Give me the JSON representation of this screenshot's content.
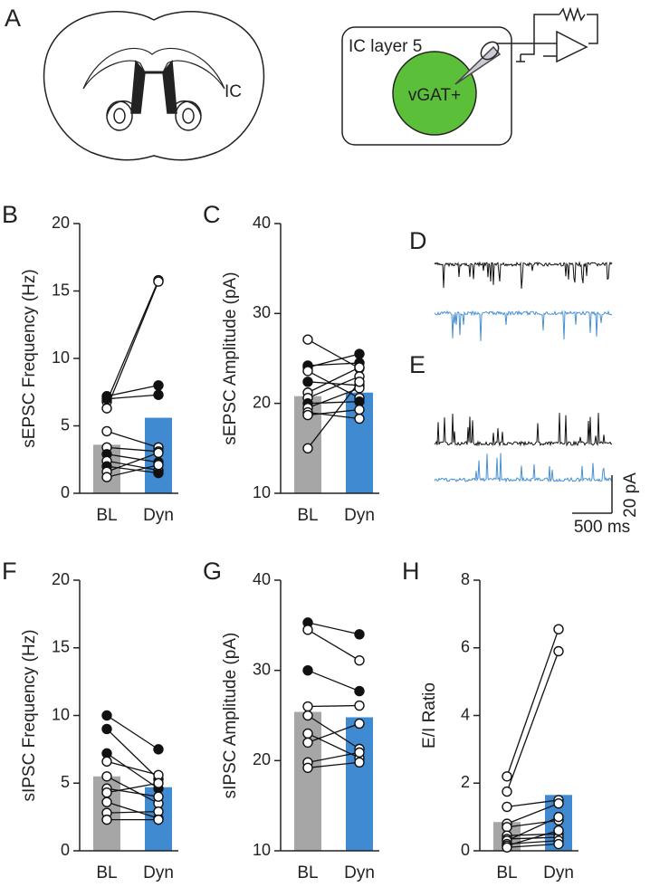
{
  "diagram": {
    "panel": "A",
    "region": "IC",
    "layer": "IC layer 5",
    "cell": "vGAT+"
  },
  "traces": {
    "panels": [
      "D",
      "E"
    ],
    "colors": [
      "#111111",
      "#4a90d0"
    ],
    "scale_y": "20 pA",
    "scale_x": "500 ms"
  },
  "chart_data": [
    {
      "type": "paired-bar",
      "panel": "B",
      "ylabel": "sEPSC Frequency (Hz)",
      "categories": [
        "BL",
        "Dyn"
      ],
      "values": [
        3.6,
        5.6
      ],
      "colors": [
        "#a6a6a6",
        "#3f8ad1"
      ],
      "ylim": [
        0,
        20
      ],
      "yticks": [
        0,
        5,
        10,
        15,
        20
      ],
      "before": [
        6.8,
        6.3,
        7.2,
        7.0,
        4.6,
        3.4,
        2.9,
        2.4,
        2.0,
        1.6,
        1.2
      ],
      "after": [
        15.8,
        15.7,
        8.0,
        7.3,
        3.4,
        3.1,
        2.3,
        1.7,
        1.5,
        3.0,
        2.1
      ],
      "filled": [
        false,
        false,
        true,
        true,
        false,
        false,
        true,
        false,
        true,
        false,
        false
      ]
    },
    {
      "type": "paired-bar",
      "panel": "C",
      "ylabel": "sEPSC Amplitude (pA)",
      "categories": [
        "BL",
        "Dyn"
      ],
      "values": [
        20.8,
        21.2
      ],
      "colors": [
        "#a6a6a6",
        "#3f8ad1"
      ],
      "ylim": [
        10,
        40
      ],
      "yticks": [
        10,
        20,
        30,
        40
      ],
      "before": [
        27.1,
        24.2,
        24.0,
        23.6,
        22.4,
        21.2,
        20.6,
        20.0,
        19.5,
        19.0,
        18.7,
        15.0
      ],
      "after": [
        23.9,
        24.5,
        25.5,
        20.6,
        22.0,
        24.0,
        23.0,
        20.2,
        21.7,
        18.3,
        19.3,
        22.4
      ],
      "filled": [
        false,
        true,
        true,
        false,
        true,
        false,
        false,
        true,
        false,
        false,
        false,
        false
      ]
    },
    {
      "type": "paired-bar",
      "panel": "F",
      "ylabel": "sIPSC Frequency (Hz)",
      "categories": [
        "BL",
        "Dyn"
      ],
      "values": [
        5.5,
        4.7
      ],
      "colors": [
        "#a6a6a6",
        "#3f8ad1"
      ],
      "ylim": [
        0,
        20
      ],
      "yticks": [
        0,
        5,
        10,
        15,
        20
      ],
      "before": [
        10.0,
        9.0,
        7.2,
        6.6,
        5.5,
        4.6,
        4.3,
        3.6,
        2.8,
        2.3
      ],
      "after": [
        7.5,
        5.3,
        4.6,
        5.6,
        3.5,
        4.0,
        5.0,
        2.4,
        2.9,
        2.3
      ],
      "filled": [
        true,
        true,
        true,
        false,
        false,
        false,
        false,
        false,
        false,
        false
      ]
    },
    {
      "type": "paired-bar",
      "panel": "G",
      "ylabel": "sIPSC Amplitude (pA)",
      "categories": [
        "BL",
        "Dyn"
      ],
      "values": [
        25.4,
        24.8
      ],
      "colors": [
        "#a6a6a6",
        "#3f8ad1"
      ],
      "ylim": [
        10,
        40
      ],
      "yticks": [
        10,
        20,
        30,
        40
      ],
      "before": [
        35.3,
        34.5,
        30.0,
        26.0,
        25.0,
        23.0,
        22.0,
        19.8,
        19.2
      ],
      "after": [
        34.0,
        31.1,
        27.7,
        26.1,
        21.3,
        20.3,
        24.1,
        20.9,
        19.8
      ],
      "filled": [
        true,
        false,
        true,
        false,
        false,
        false,
        false,
        false,
        false
      ]
    },
    {
      "type": "paired-bar",
      "panel": "H",
      "ylabel": "E/I Ratio",
      "categories": [
        "BL",
        "Dyn"
      ],
      "values": [
        0.85,
        1.65
      ],
      "colors": [
        "#a6a6a6",
        "#3f8ad1"
      ],
      "ylim": [
        0,
        8
      ],
      "yticks": [
        0,
        2,
        4,
        6,
        8
      ],
      "before": [
        2.2,
        1.75,
        1.3,
        0.8,
        0.7,
        0.45,
        0.35,
        0.3,
        0.2,
        0.15,
        0.1
      ],
      "after": [
        6.55,
        5.9,
        1.5,
        1.4,
        0.9,
        0.5,
        0.4,
        1.0,
        0.3,
        0.6,
        0.2
      ],
      "filled": [
        false,
        false,
        false,
        false,
        false,
        false,
        false,
        false,
        false,
        false,
        false
      ]
    }
  ]
}
